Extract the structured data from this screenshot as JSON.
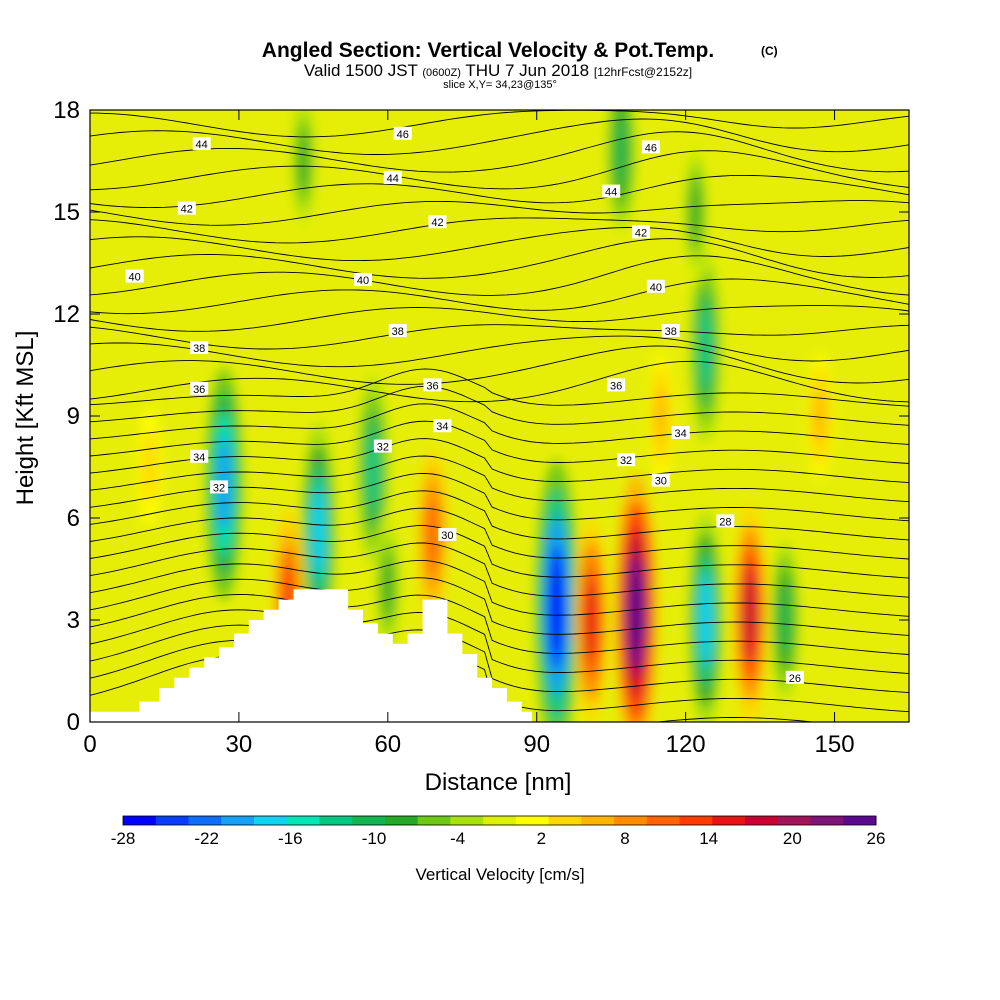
{
  "header": {
    "title_main": "Angled Section: Vertical Velocity & Pot.Temp.",
    "title_tag": "(C)",
    "valid_prefix": "Valid 1500 JST",
    "valid_utc": "(0600Z)",
    "valid_date": "THU 7 Jun 2018",
    "valid_fcst": "[12hrFcst@2152z]",
    "slice": "slice X,Y= 34,23@135°"
  },
  "chart_data": {
    "type": "heatmap",
    "xlabel": "Distance [nm]",
    "ylabel": "Height [Kft MSL]",
    "xlim": [
      0,
      165
    ],
    "ylim": [
      0,
      18
    ],
    "xticks": [
      0,
      30,
      60,
      90,
      120,
      150
    ],
    "yticks": [
      0,
      3,
      6,
      9,
      12,
      15,
      18
    ],
    "colorbar": {
      "label": "Vertical Velocity [cm/s]",
      "tick_labels": [
        "-28",
        "-22",
        "-16",
        "-10",
        "-4",
        "2",
        "8",
        "14",
        "20",
        "26"
      ],
      "colors": [
        "#0000ff",
        "#0a3cff",
        "#0f6eff",
        "#18a0f5",
        "#12d2f0",
        "#00e6b4",
        "#00c882",
        "#14b450",
        "#28a828",
        "#6ec818",
        "#a8e010",
        "#dcf000",
        "#ffff00",
        "#ffd700",
        "#ffb400",
        "#ff8c00",
        "#ff6400",
        "#ff3c00",
        "#e61414",
        "#c80032",
        "#a0145a",
        "#7d1478",
        "#5a0a8c"
      ]
    },
    "velocity_cells": [
      {
        "x": 27,
        "y": 7.0,
        "w": -20
      },
      {
        "x": 40,
        "y": 3.5,
        "w": 14
      },
      {
        "x": 46,
        "y": 5.6,
        "w": -18
      },
      {
        "x": 57,
        "y": 7.4,
        "w": -14
      },
      {
        "x": 60,
        "y": 4.0,
        "w": -8
      },
      {
        "x": 69,
        "y": 5.5,
        "w": 12
      },
      {
        "x": 94,
        "y": 3.4,
        "w": -28
      },
      {
        "x": 101,
        "y": 3.0,
        "w": 16
      },
      {
        "x": 110,
        "y": 3.2,
        "w": 26
      },
      {
        "x": 124,
        "y": 3.0,
        "w": -18
      },
      {
        "x": 133,
        "y": 3.2,
        "w": 18
      },
      {
        "x": 140,
        "y": 3.0,
        "w": -10
      },
      {
        "x": 124,
        "y": 11.0,
        "w": -14
      },
      {
        "x": 122,
        "y": 15.0,
        "w": -8
      },
      {
        "x": 107,
        "y": 16.8,
        "w": -10
      },
      {
        "x": 115,
        "y": 9.0,
        "w": 6
      },
      {
        "x": 147,
        "y": 9.0,
        "w": 6
      },
      {
        "x": 12,
        "y": 7.5,
        "w": 5
      },
      {
        "x": 43,
        "y": 16.5,
        "w": -8
      }
    ],
    "theta_labels": [
      {
        "x": 22.5,
        "y": 17.0,
        "text": "44"
      },
      {
        "x": 61,
        "y": 16.0,
        "text": "44"
      },
      {
        "x": 63,
        "y": 17.3,
        "text": "46"
      },
      {
        "x": 113,
        "y": 16.9,
        "text": "46"
      },
      {
        "x": 105,
        "y": 15.6,
        "text": "44"
      },
      {
        "x": 19.5,
        "y": 15.1,
        "text": "42"
      },
      {
        "x": 70,
        "y": 14.7,
        "text": "42"
      },
      {
        "x": 111,
        "y": 14.4,
        "text": "42"
      },
      {
        "x": 9,
        "y": 13.1,
        "text": "40"
      },
      {
        "x": 55,
        "y": 13.0,
        "text": "40"
      },
      {
        "x": 114,
        "y": 12.8,
        "text": "40"
      },
      {
        "x": 22,
        "y": 11.0,
        "text": "38"
      },
      {
        "x": 62,
        "y": 11.5,
        "text": "38"
      },
      {
        "x": 117,
        "y": 11.5,
        "text": "38"
      },
      {
        "x": 22,
        "y": 9.8,
        "text": "36"
      },
      {
        "x": 69,
        "y": 9.9,
        "text": "36"
      },
      {
        "x": 106,
        "y": 9.9,
        "text": "36"
      },
      {
        "x": 22,
        "y": 7.8,
        "text": "34"
      },
      {
        "x": 71,
        "y": 8.7,
        "text": "34"
      },
      {
        "x": 119,
        "y": 8.5,
        "text": "34"
      },
      {
        "x": 26,
        "y": 6.9,
        "text": "32"
      },
      {
        "x": 59,
        "y": 8.1,
        "text": "32"
      },
      {
        "x": 108,
        "y": 7.7,
        "text": "32"
      },
      {
        "x": 72,
        "y": 5.5,
        "text": "30"
      },
      {
        "x": 115,
        "y": 7.1,
        "text": "30"
      },
      {
        "x": 128,
        "y": 5.9,
        "text": "28"
      },
      {
        "x": 142,
        "y": 1.3,
        "text": "26"
      }
    ],
    "terrain": [
      [
        0,
        0.3
      ],
      [
        10,
        0.3
      ],
      [
        10,
        0.6
      ],
      [
        14,
        0.6
      ],
      [
        14,
        1.0
      ],
      [
        17,
        1.0
      ],
      [
        17,
        1.3
      ],
      [
        20,
        1.3
      ],
      [
        20,
        1.6
      ],
      [
        23,
        1.6
      ],
      [
        23,
        1.9
      ],
      [
        26,
        1.9
      ],
      [
        26,
        2.2
      ],
      [
        29,
        2.2
      ],
      [
        29,
        2.6
      ],
      [
        32,
        2.6
      ],
      [
        32,
        3.0
      ],
      [
        35,
        3.0
      ],
      [
        35,
        3.3
      ],
      [
        38,
        3.3
      ],
      [
        38,
        3.6
      ],
      [
        41,
        3.6
      ],
      [
        41,
        3.9
      ],
      [
        52,
        3.9
      ],
      [
        52,
        3.3
      ],
      [
        55,
        3.3
      ],
      [
        55,
        2.9
      ],
      [
        58,
        2.9
      ],
      [
        58,
        2.6
      ],
      [
        61,
        2.6
      ],
      [
        61,
        2.3
      ],
      [
        64,
        2.3
      ],
      [
        64,
        2.6
      ],
      [
        67,
        2.6
      ],
      [
        67,
        3.6
      ],
      [
        72,
        3.6
      ],
      [
        72,
        2.6
      ],
      [
        75,
        2.6
      ],
      [
        75,
        2.0
      ],
      [
        78,
        2.0
      ],
      [
        78,
        1.3
      ],
      [
        81,
        1.3
      ],
      [
        81,
        1.0
      ],
      [
        84,
        1.0
      ],
      [
        84,
        0.6
      ],
      [
        87,
        0.6
      ],
      [
        87,
        0.3
      ],
      [
        89,
        0.3
      ],
      [
        89,
        0
      ]
    ]
  }
}
